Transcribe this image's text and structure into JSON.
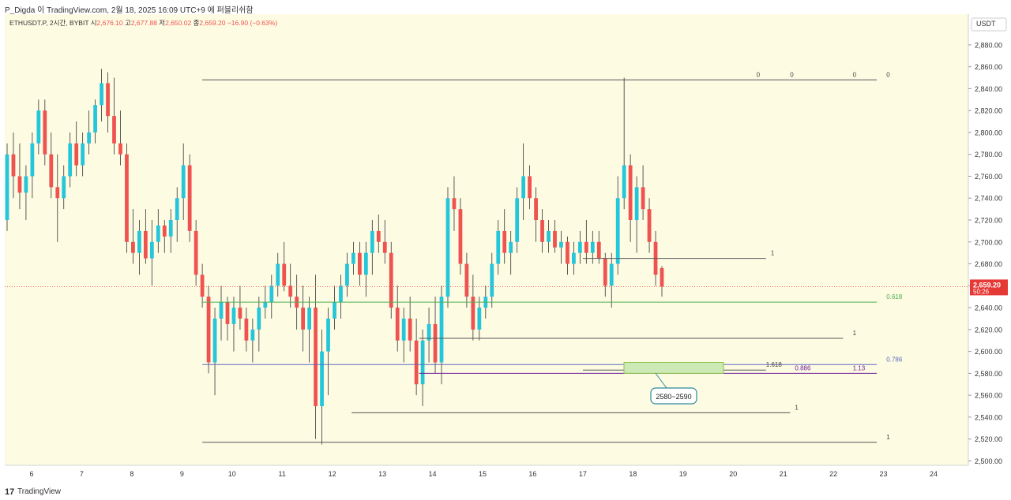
{
  "header": {
    "caption": "P_Digda 이 TradingView.com, 2월 18, 2025 16:09 UTC+9 에 퍼블리쉬함"
  },
  "footer": {
    "logo": "17",
    "brand": "TradingView"
  },
  "colors": {
    "background": "#fefbe3",
    "up": "#26c6da",
    "down": "#ef5350",
    "fib_green": "#4caf50",
    "fib_blue": "#5c6bc0",
    "purple": "#6a1b9a",
    "zone_fill": "#cde9b5",
    "zone_border": "#8bc34a"
  },
  "chart_data": {
    "type": "candlestick",
    "title": "ETHUSDT.P, 2시간, BYBIT",
    "ohlc_legend": {
      "open_label": "시",
      "open": "2,676.10",
      "high_label": "고",
      "high": "2,677.88",
      "low_label": "저",
      "low": "2,650.02",
      "close_label": "종",
      "close": "2,659.20",
      "change": "−16.90 (−0.63%)"
    },
    "currency": "USDT",
    "ylim": [
      2496,
      2908
    ],
    "y_ticks": [
      "2,500.00",
      "2,520.00",
      "2,540.00",
      "2,560.00",
      "2,580.00",
      "2,600.00",
      "2,620.00",
      "2,640.00",
      "2,660.00",
      "2,680.00",
      "2,700.00",
      "2,720.00",
      "2,740.00",
      "2,760.00",
      "2,780.00",
      "2,800.00",
      "2,820.00",
      "2,840.00",
      "2,860.00",
      "2,880.00"
    ],
    "x_ticks": [
      "6",
      "7",
      "8",
      "9",
      "10",
      "11",
      "12",
      "13",
      "14",
      "15",
      "16",
      "17",
      "18",
      "19",
      "20",
      "21",
      "22",
      "23",
      "24"
    ],
    "last_price": {
      "price": 2659.2,
      "label": "2,659.20",
      "countdown": "50:26"
    },
    "candles": [
      [
        2720,
        2790,
        2710,
        2780
      ],
      [
        2780,
        2800,
        2740,
        2760
      ],
      [
        2760,
        2790,
        2730,
        2745
      ],
      [
        2745,
        2770,
        2720,
        2760
      ],
      [
        2760,
        2800,
        2740,
        2790
      ],
      [
        2790,
        2830,
        2780,
        2820
      ],
      [
        2820,
        2830,
        2770,
        2780
      ],
      [
        2780,
        2800,
        2740,
        2750
      ],
      [
        2750,
        2780,
        2700,
        2740
      ],
      [
        2740,
        2770,
        2730,
        2760
      ],
      [
        2760,
        2800,
        2750,
        2790
      ],
      [
        2790,
        2810,
        2760,
        2770
      ],
      [
        2770,
        2800,
        2760,
        2790
      ],
      [
        2790,
        2820,
        2780,
        2800
      ],
      [
        2800,
        2830,
        2790,
        2825
      ],
      [
        2825,
        2858,
        2810,
        2845
      ],
      [
        2845,
        2855,
        2800,
        2815
      ],
      [
        2815,
        2850,
        2780,
        2790
      ],
      [
        2790,
        2820,
        2770,
        2780
      ],
      [
        2780,
        2790,
        2690,
        2700
      ],
      [
        2700,
        2730,
        2680,
        2690
      ],
      [
        2690,
        2720,
        2670,
        2710
      ],
      [
        2710,
        2730,
        2680,
        2685
      ],
      [
        2685,
        2720,
        2660,
        2700
      ],
      [
        2700,
        2730,
        2690,
        2715
      ],
      [
        2715,
        2720,
        2690,
        2705
      ],
      [
        2705,
        2730,
        2690,
        2720
      ],
      [
        2720,
        2750,
        2700,
        2740
      ],
      [
        2740,
        2790,
        2720,
        2770
      ],
      [
        2770,
        2780,
        2700,
        2710
      ],
      [
        2710,
        2720,
        2660,
        2670
      ],
      [
        2670,
        2680,
        2640,
        2650
      ],
      [
        2650,
        2660,
        2580,
        2590
      ],
      [
        2590,
        2640,
        2560,
        2630
      ],
      [
        2630,
        2660,
        2610,
        2645
      ],
      [
        2645,
        2650,
        2610,
        2625
      ],
      [
        2625,
        2650,
        2600,
        2640
      ],
      [
        2640,
        2660,
        2620,
        2630
      ],
      [
        2630,
        2640,
        2600,
        2610
      ],
      [
        2610,
        2630,
        2590,
        2620
      ],
      [
        2620,
        2650,
        2600,
        2640
      ],
      [
        2640,
        2660,
        2630,
        2645
      ],
      [
        2645,
        2670,
        2630,
        2660
      ],
      [
        2660,
        2690,
        2650,
        2680
      ],
      [
        2680,
        2700,
        2655,
        2660
      ],
      [
        2660,
        2680,
        2640,
        2650
      ],
      [
        2650,
        2670,
        2620,
        2640
      ],
      [
        2640,
        2660,
        2600,
        2620
      ],
      [
        2620,
        2650,
        2590,
        2640
      ],
      [
        2640,
        2670,
        2520,
        2550
      ],
      [
        2550,
        2620,
        2515,
        2600
      ],
      [
        2600,
        2640,
        2560,
        2630
      ],
      [
        2630,
        2660,
        2620,
        2645
      ],
      [
        2645,
        2670,
        2630,
        2660
      ],
      [
        2660,
        2690,
        2650,
        2680
      ],
      [
        2680,
        2700,
        2670,
        2690
      ],
      [
        2690,
        2700,
        2660,
        2670
      ],
      [
        2670,
        2700,
        2650,
        2690
      ],
      [
        2690,
        2720,
        2670,
        2710
      ],
      [
        2710,
        2725,
        2690,
        2700
      ],
      [
        2700,
        2720,
        2680,
        2690
      ],
      [
        2690,
        2700,
        2630,
        2640
      ],
      [
        2640,
        2660,
        2600,
        2610
      ],
      [
        2610,
        2640,
        2590,
        2630
      ],
      [
        2630,
        2650,
        2600,
        2610
      ],
      [
        2610,
        2630,
        2560,
        2570
      ],
      [
        2570,
        2620,
        2550,
        2610
      ],
      [
        2610,
        2640,
        2590,
        2625
      ],
      [
        2625,
        2650,
        2580,
        2590
      ],
      [
        2590,
        2660,
        2570,
        2650
      ],
      [
        2650,
        2750,
        2640,
        2740
      ],
      [
        2740,
        2760,
        2710,
        2730
      ],
      [
        2730,
        2740,
        2670,
        2680
      ],
      [
        2680,
        2690,
        2640,
        2650
      ],
      [
        2650,
        2670,
        2610,
        2620
      ],
      [
        2620,
        2650,
        2610,
        2640
      ],
      [
        2640,
        2660,
        2630,
        2650
      ],
      [
        2650,
        2690,
        2640,
        2680
      ],
      [
        2680,
        2720,
        2670,
        2710
      ],
      [
        2710,
        2730,
        2680,
        2690
      ],
      [
        2690,
        2710,
        2670,
        2700
      ],
      [
        2700,
        2750,
        2690,
        2740
      ],
      [
        2740,
        2790,
        2720,
        2760
      ],
      [
        2760,
        2770,
        2730,
        2740
      ],
      [
        2740,
        2750,
        2700,
        2720
      ],
      [
        2720,
        2730,
        2690,
        2700
      ],
      [
        2700,
        2720,
        2690,
        2710
      ],
      [
        2710,
        2720,
        2690,
        2695
      ],
      [
        2695,
        2710,
        2680,
        2700
      ],
      [
        2700,
        2705,
        2670,
        2680
      ],
      [
        2680,
        2700,
        2670,
        2690
      ],
      [
        2690,
        2710,
        2680,
        2700
      ],
      [
        2700,
        2720,
        2680,
        2690
      ],
      [
        2690,
        2710,
        2680,
        2700
      ],
      [
        2700,
        2710,
        2680,
        2685
      ],
      [
        2685,
        2690,
        2650,
        2660
      ],
      [
        2660,
        2690,
        2640,
        2680
      ],
      [
        2680,
        2760,
        2670,
        2740
      ],
      [
        2740,
        2850,
        2730,
        2770
      ],
      [
        2770,
        2780,
        2700,
        2720
      ],
      [
        2720,
        2760,
        2690,
        2750
      ],
      [
        2750,
        2770,
        2720,
        2730
      ],
      [
        2730,
        2740,
        2690,
        2700
      ],
      [
        2700,
        2710,
        2660,
        2670
      ],
      [
        2676.1,
        2677.88,
        2650.02,
        2659.2
      ]
    ],
    "fib_levels": [
      {
        "price": 2848,
        "x_from": 0.205,
        "x_to": 0.905,
        "labels": [
          {
            "text": "0",
            "at": 0.78
          },
          {
            "text": "0",
            "at": 0.815
          },
          {
            "text": "0",
            "at": 0.88
          },
          {
            "text": "0",
            "at": 0.915
          }
        ]
      },
      {
        "price": 2685,
        "x_from": 0.6,
        "x_to": 0.79,
        "labels": [
          {
            "text": "1",
            "at": 0.795
          }
        ]
      },
      {
        "price": 2645,
        "x_from": 0.205,
        "x_to": 0.905,
        "labels": [
          {
            "text": "0.618",
            "at": 0.915
          }
        ],
        "color": "#4caf50"
      },
      {
        "price": 2612,
        "x_from": 0.43,
        "x_to": 0.87,
        "labels": [
          {
            "text": "1",
            "at": 0.88
          }
        ]
      },
      {
        "price": 2588,
        "x_from": 0.205,
        "x_to": 0.905,
        "labels": [
          {
            "text": "0.786",
            "at": 0.915
          }
        ],
        "color": "#5c6bc0"
      },
      {
        "price": 2583,
        "x_from": 0.6,
        "x_to": 0.79,
        "labels": [
          {
            "text": "1.618",
            "at": 0.79
          }
        ]
      },
      {
        "price": 2580,
        "x_from": 0.43,
        "x_to": 0.905,
        "labels": [
          {
            "text": "0.886",
            "at": 0.82
          },
          {
            "text": "1.13",
            "at": 0.88
          }
        ],
        "color": "#6a1b9a"
      },
      {
        "price": 2544,
        "x_from": 0.36,
        "x_to": 0.815,
        "labels": [
          {
            "text": "1",
            "at": 0.82
          }
        ]
      },
      {
        "price": 2517,
        "x_from": 0.205,
        "x_to": 0.905,
        "labels": [
          {
            "text": "1",
            "at": 0.915
          }
        ]
      }
    ],
    "target_zone": {
      "top": 2590,
      "bottom": 2580,
      "label": "2580~2590"
    }
  }
}
